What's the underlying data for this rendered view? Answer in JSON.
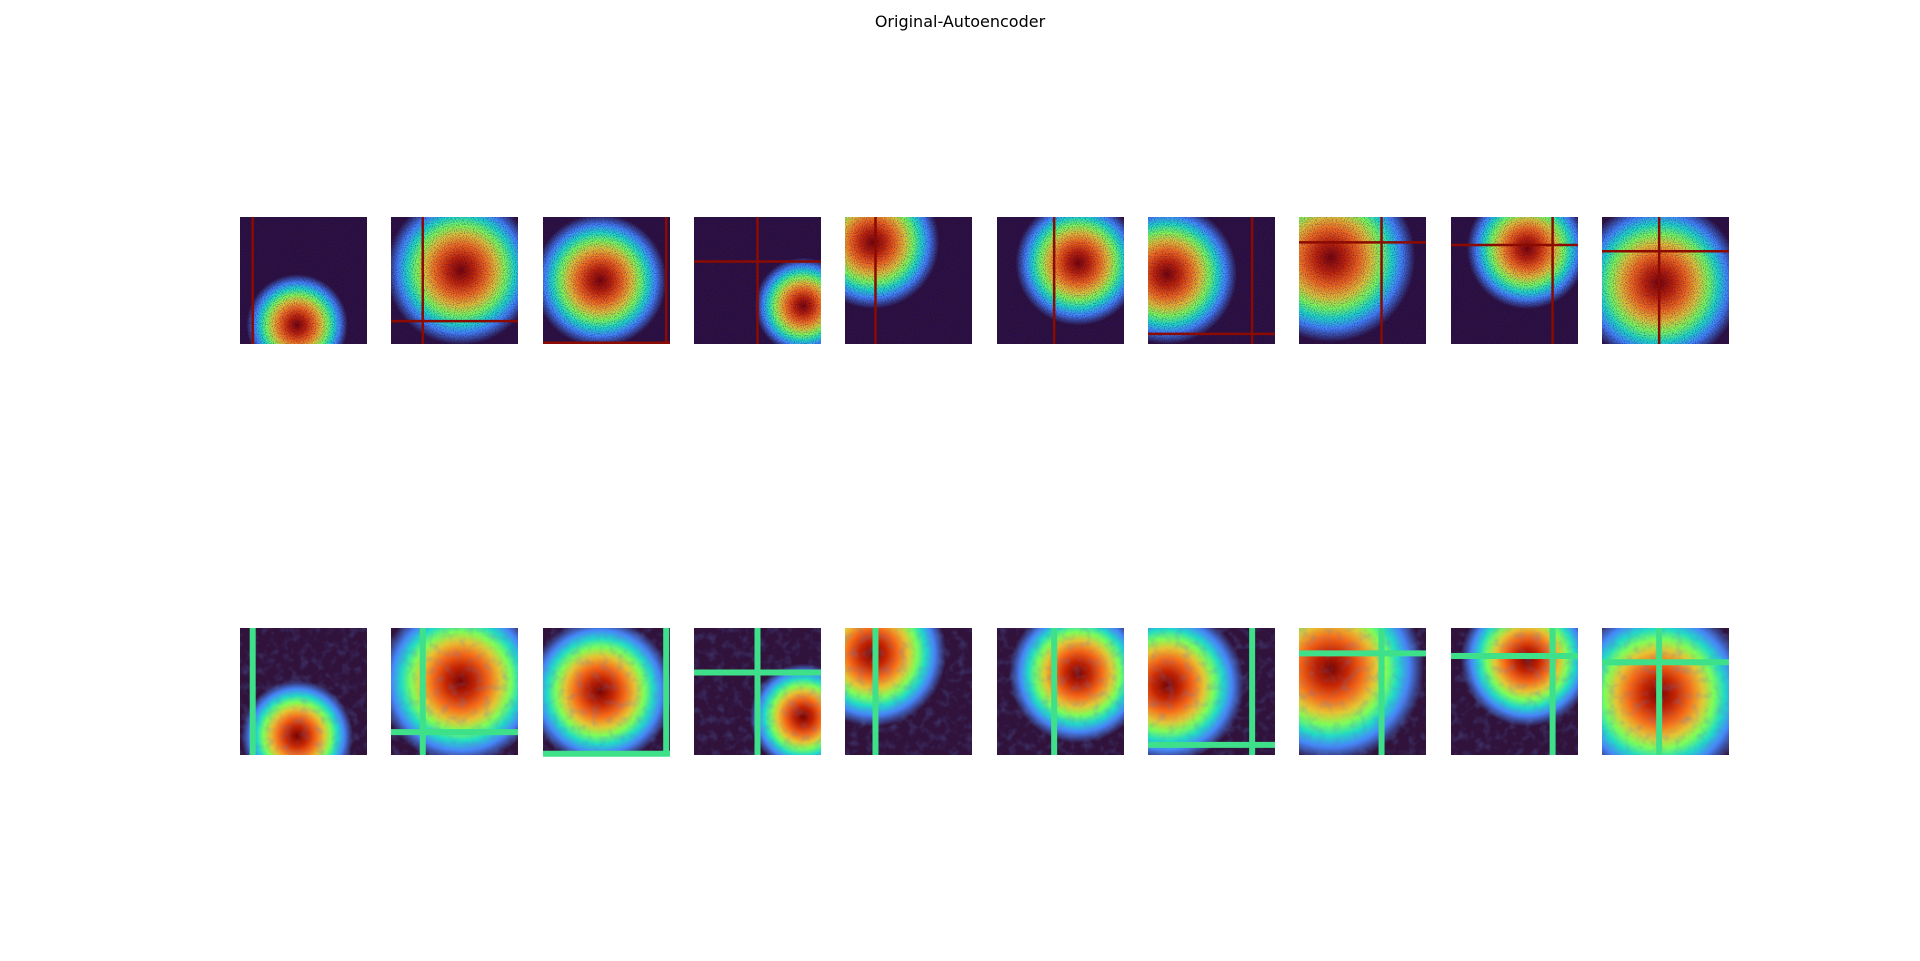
{
  "title": "Original-Autoencoder"
}
